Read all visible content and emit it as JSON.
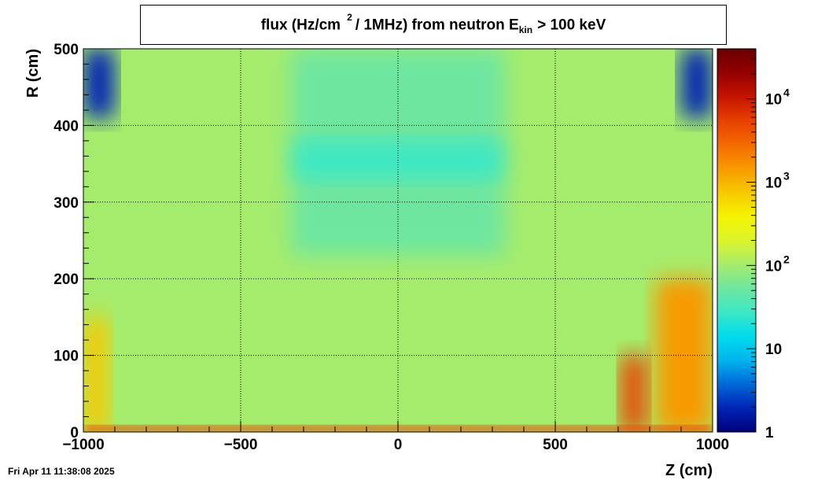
{
  "chart_data": {
    "type": "heatmap",
    "title": {
      "prefix": "flux (Hz/cm",
      "sup": "2",
      "middle": "/ 1MHz) from   neutron  E",
      "sub": "kin",
      "suffix": "> 100 keV"
    },
    "xlabel": "Z (cm)",
    "ylabel": "R (cm)",
    "xlim": [
      -1000,
      1000
    ],
    "ylim": [
      0,
      500
    ],
    "x_ticks": [
      {
        "value": -1000,
        "label": "−1000"
      },
      {
        "value": -500,
        "label": "−500"
      },
      {
        "value": 0,
        "label": "0"
      },
      {
        "value": 500,
        "label": "500"
      },
      {
        "value": 1000,
        "label": "1000"
      }
    ],
    "y_ticks": [
      {
        "value": 0,
        "label": "0"
      },
      {
        "value": 100,
        "label": "100"
      },
      {
        "value": 200,
        "label": "200"
      },
      {
        "value": 300,
        "label": "300"
      },
      {
        "value": 400,
        "label": "400"
      },
      {
        "value": 500,
        "label": "500"
      }
    ],
    "grid": true,
    "colorbar": {
      "scale": "log",
      "range": [
        1,
        40000
      ],
      "ticks": [
        {
          "value": 1,
          "base": "1",
          "exp": ""
        },
        {
          "value": 10,
          "base": "10",
          "exp": ""
        },
        {
          "value": 100,
          "base": "10",
          "exp": "2"
        },
        {
          "value": 1000,
          "base": "10",
          "exp": "3"
        },
        {
          "value": 10000,
          "base": "10",
          "exp": "4"
        }
      ],
      "colors": [
        "#00007a",
        "#0024b4",
        "#0068d8",
        "#00b4ec",
        "#00dcee",
        "#3ce8c4",
        "#6ee6a0",
        "#a6ec6c",
        "#dcf42c",
        "#f4f400",
        "#f8c800",
        "#f89a00",
        "#f46a00",
        "#e84000",
        "#c41400",
        "#940000",
        "#6a0000"
      ]
    },
    "regions_log10_flux": [
      {
        "z": [
          -1000,
          1000
        ],
        "r": [
          0,
          500
        ],
        "value": 2.1
      },
      {
        "z": [
          -340,
          340
        ],
        "r": [
          230,
          500
        ],
        "value": 1.7
      },
      {
        "z": [
          -330,
          330
        ],
        "r": [
          330,
          380
        ],
        "value": 1.4
      },
      {
        "z": [
          -1000,
          -900
        ],
        "r": [
          410,
          500
        ],
        "value": 0.3
      },
      {
        "z": [
          900,
          1000
        ],
        "r": [
          410,
          500
        ],
        "value": 0.3
      },
      {
        "z": [
          -1000,
          -920
        ],
        "r": [
          0,
          150
        ],
        "value": 3.0
      },
      {
        "z": [
          820,
          1000
        ],
        "r": [
          0,
          200
        ],
        "value": 3.1
      },
      {
        "z": [
          710,
          790
        ],
        "r": [
          0,
          100
        ],
        "value": 3.7
      },
      {
        "z": [
          -1000,
          1000
        ],
        "r": [
          0,
          8
        ],
        "value": 3.8
      }
    ]
  },
  "footer": {
    "timestamp": "Fri Apr 11 11:38:08 2025"
  }
}
